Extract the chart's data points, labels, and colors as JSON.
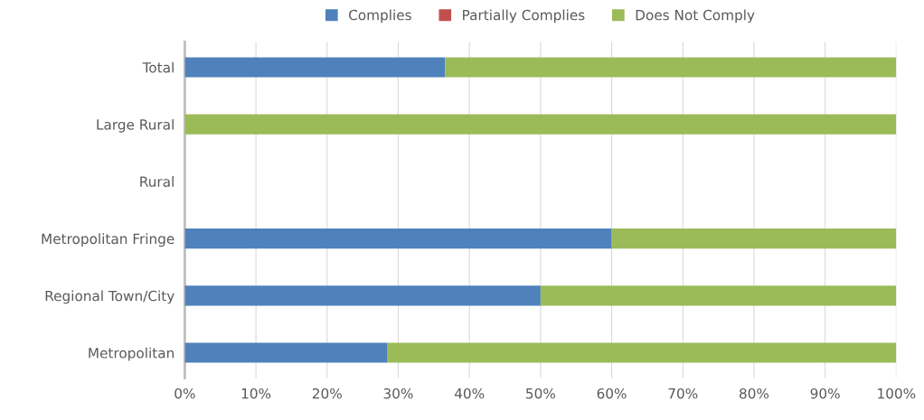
{
  "chart_data": {
    "type": "bar",
    "orientation": "horizontal",
    "stacked": true,
    "categories": [
      "Total",
      "Large Rural",
      "Rural",
      "Metropolitan Fringe",
      "Regional Town/City",
      "Metropolitan"
    ],
    "series": [
      {
        "name": "Complies",
        "color": "#4f81bd",
        "values": [
          36.6,
          0,
          0,
          60,
          50,
          28.5
        ]
      },
      {
        "name": "Partially Complies",
        "color": "#c0504d",
        "values": [
          0,
          0,
          0,
          0,
          0,
          0
        ]
      },
      {
        "name": "Does Not Comply",
        "color": "#9bbb59",
        "values": [
          63.4,
          100,
          0,
          40,
          50,
          71.5
        ]
      }
    ],
    "xlim": [
      0,
      100
    ],
    "xticks": [
      {
        "value": 0,
        "label": "0%"
      },
      {
        "value": 10,
        "label": "10%"
      },
      {
        "value": 20,
        "label": "20%"
      },
      {
        "value": 30,
        "label": "30%"
      },
      {
        "value": 40,
        "label": "40%"
      },
      {
        "value": 50,
        "label": "50%"
      },
      {
        "value": 60,
        "label": "60%"
      },
      {
        "value": 70,
        "label": "70%"
      },
      {
        "value": 80,
        "label": "80%"
      },
      {
        "value": 90,
        "label": "90%"
      },
      {
        "value": 100,
        "label": "100%"
      }
    ],
    "grid": "x",
    "legend": "top"
  }
}
